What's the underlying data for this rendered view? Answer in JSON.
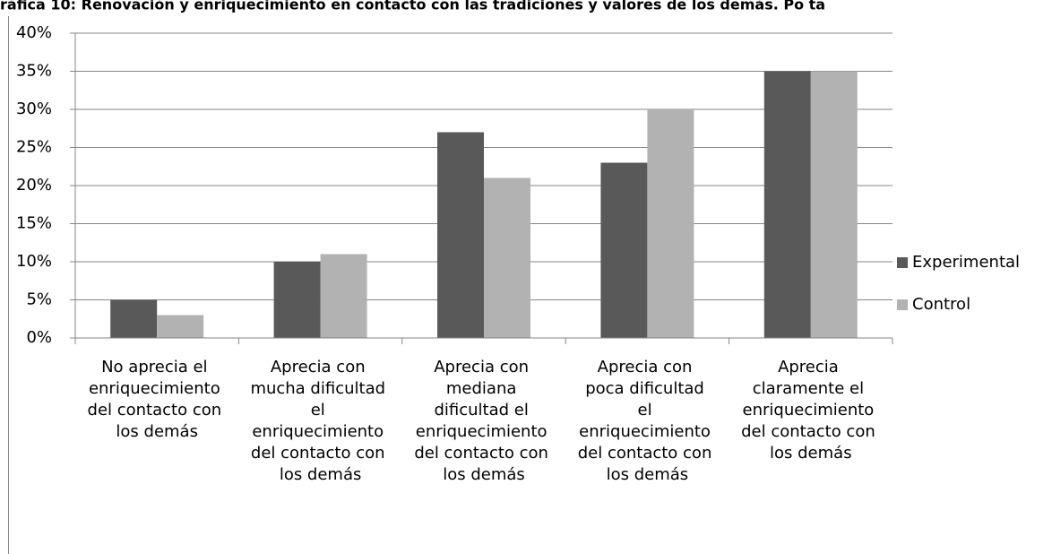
{
  "chart_data": {
    "type": "bar",
    "title": "ráfica 10: Renovación y enriquecimiento en contacto con las tradiciones y valores de los demás. Po ta",
    "categories": [
      "No aprecia el\nenriquecimiento\ndel contacto con\nlos demás",
      "Aprecia con\nmucha dificultad\nel\nenriquecimiento\ndel contacto con\nlos demás",
      "Aprecia con\nmediana\ndificultad el\nenriquecimiento\ndel contacto con\nlos demás",
      "Aprecia con\npoca dificultad\nel\nenriquecimiento\ndel contacto con\nlos demás",
      "Aprecia\nclaramente el\nenriquecimiento\ndel contacto con\nlos demás"
    ],
    "series": [
      {
        "name": "Experimental",
        "color": "#595959",
        "values": [
          5,
          10,
          27,
          23,
          35
        ]
      },
      {
        "name": "Control",
        "color": "#b2b2b2",
        "values": [
          3,
          11,
          21,
          30,
          35
        ]
      }
    ],
    "ylim": [
      0,
      40
    ],
    "yticks": [
      {
        "value": 0,
        "label": "0%"
      },
      {
        "value": 5,
        "label": "5%"
      },
      {
        "value": 10,
        "label": "10%"
      },
      {
        "value": 15,
        "label": "15%"
      },
      {
        "value": 20,
        "label": "20%"
      },
      {
        "value": 25,
        "label": "25%"
      },
      {
        "value": 30,
        "label": "30%"
      },
      {
        "value": 35,
        "label": "35%"
      },
      {
        "value": 40,
        "label": "40%"
      }
    ],
    "grid": true,
    "legend": "right"
  }
}
